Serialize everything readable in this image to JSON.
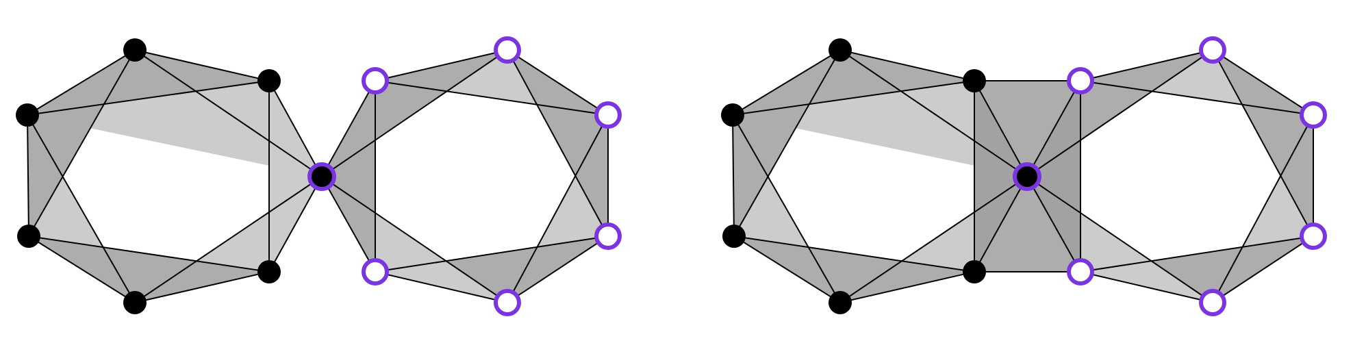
{
  "colors": {
    "background": "#ffffff",
    "face_light": "#cccccc",
    "face_mid": "#adadad",
    "face_dark": "#a2a2a2",
    "edge": "#000000",
    "edge_inner": "#4a4a4a",
    "vertex_fill": "#000000",
    "highlight_ring": "#7a35e0",
    "ring_fill": "#ffffff"
  },
  "diagrams": [
    {
      "name": "left-configuration",
      "variant": "bow-tie"
    },
    {
      "name": "right-configuration",
      "variant": "bridged"
    }
  ]
}
